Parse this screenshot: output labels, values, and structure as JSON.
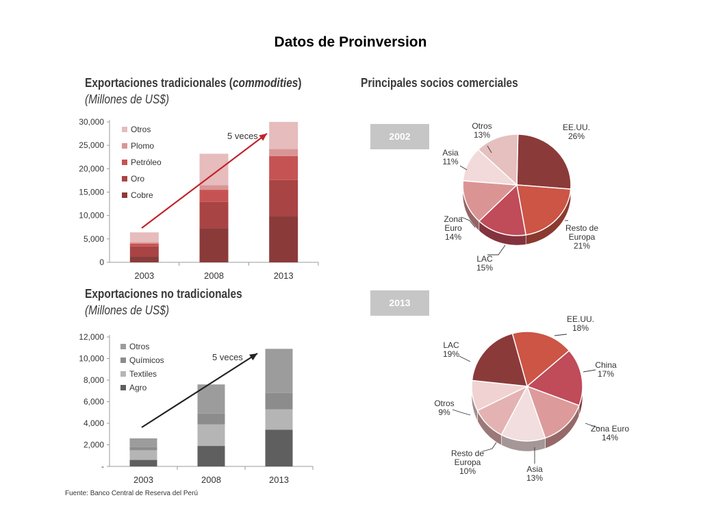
{
  "page": {
    "title": "Datos de Proinversion"
  },
  "source_note": "Fuente: Banco Central de Reserva del Perú",
  "pie_panel": {
    "title": "Principales socios comerciales"
  },
  "chart_data": [
    {
      "type": "bar",
      "stacked": true,
      "title": "Exportaciones tradicionales (commodities)",
      "title_main": "Exportaciones tradicionales (",
      "title_emph": "commodities",
      "title_end": ")",
      "subtitle": "(Millones de US$)",
      "categories": [
        "2003",
        "2008",
        "2013"
      ],
      "ylim": [
        0,
        30000
      ],
      "yticks": [
        "0",
        "5,000",
        "10,000",
        "15,000",
        "20,000",
        "25,000",
        "30,000"
      ],
      "ytick_values": [
        0,
        5000,
        10000,
        15000,
        20000,
        25000,
        30000
      ],
      "annotation": "5 veces",
      "legend_position": "top-left",
      "series": [
        {
          "name": "Cobre",
          "color": "#8b3a3a",
          "values": [
            1300,
            7300,
            9800
          ]
        },
        {
          "name": "Oro",
          "color": "#a94444",
          "values": [
            2100,
            5600,
            7800
          ]
        },
        {
          "name": "Petróleo",
          "color": "#c65353",
          "values": [
            600,
            2600,
            5100
          ]
        },
        {
          "name": "Plomo",
          "color": "#d99595",
          "values": [
            300,
            1000,
            1500
          ]
        },
        {
          "name": "Otros",
          "color": "#e6bcbc",
          "values": [
            2100,
            6700,
            5800
          ]
        }
      ]
    },
    {
      "type": "bar",
      "stacked": true,
      "title": "Exportaciones no tradicionales",
      "subtitle": "(Millones de US$)",
      "categories": [
        "2003",
        "2008",
        "2013"
      ],
      "ylim": [
        0,
        12000
      ],
      "yticks": [
        "-",
        "2,000",
        "4,000",
        "6,000",
        "8,000",
        "10,000",
        "12,000"
      ],
      "ytick_values": [
        0,
        2000,
        4000,
        6000,
        8000,
        10000,
        12000
      ],
      "annotation": "5 veces",
      "legend_position": "top-left",
      "series": [
        {
          "name": "Agro",
          "color": "#5f5f5f",
          "values": [
            600,
            1900,
            3400
          ]
        },
        {
          "name": "Textiles",
          "color": "#b5b5b5",
          "values": [
            900,
            2000,
            1900
          ]
        },
        {
          "name": "Químicos",
          "color": "#8c8c8c",
          "values": [
            300,
            1000,
            1500
          ]
        },
        {
          "name": "Otros",
          "color": "#9c9c9c",
          "values": [
            800,
            2700,
            4100
          ]
        }
      ]
    },
    {
      "type": "pie",
      "title": "2002",
      "slices": [
        {
          "label": "EE.UU.",
          "pct": "26%",
          "value": 26,
          "color": "#8b3a3a"
        },
        {
          "label": "Resto de Europa",
          "pct": "21%",
          "value": 21,
          "color": "#cc5545"
        },
        {
          "label": "LAC",
          "pct": "15%",
          "value": 15,
          "color": "#c04b59"
        },
        {
          "label": "Zona Euro",
          "pct": "14%",
          "value": 14,
          "color": "#db9494"
        },
        {
          "label": "Asia",
          "pct": "11%",
          "value": 11,
          "color": "#f2dada"
        },
        {
          "label": "Otros",
          "pct": "13%",
          "value": 13,
          "color": "#e6bfbf"
        }
      ]
    },
    {
      "type": "pie",
      "title": "2013",
      "slices": [
        {
          "label": "EE.UU.",
          "pct": "18%",
          "value": 18,
          "color": "#cc5545"
        },
        {
          "label": "China",
          "pct": "17%",
          "value": 17,
          "color": "#c04b59"
        },
        {
          "label": "Zona Euro",
          "pct": "14%",
          "value": 14,
          "color": "#dd9a9a"
        },
        {
          "label": "Asia",
          "pct": "13%",
          "value": 13,
          "color": "#f2dede"
        },
        {
          "label": "Resto de Europa",
          "pct": "10%",
          "value": 10,
          "color": "#e4b2b2"
        },
        {
          "label": "Otros",
          "pct": "9%",
          "value": 9,
          "color": "#f0d2d2"
        },
        {
          "label": "LAC",
          "pct": "19%",
          "value": 19,
          "color": "#8b3a3a"
        }
      ]
    }
  ]
}
